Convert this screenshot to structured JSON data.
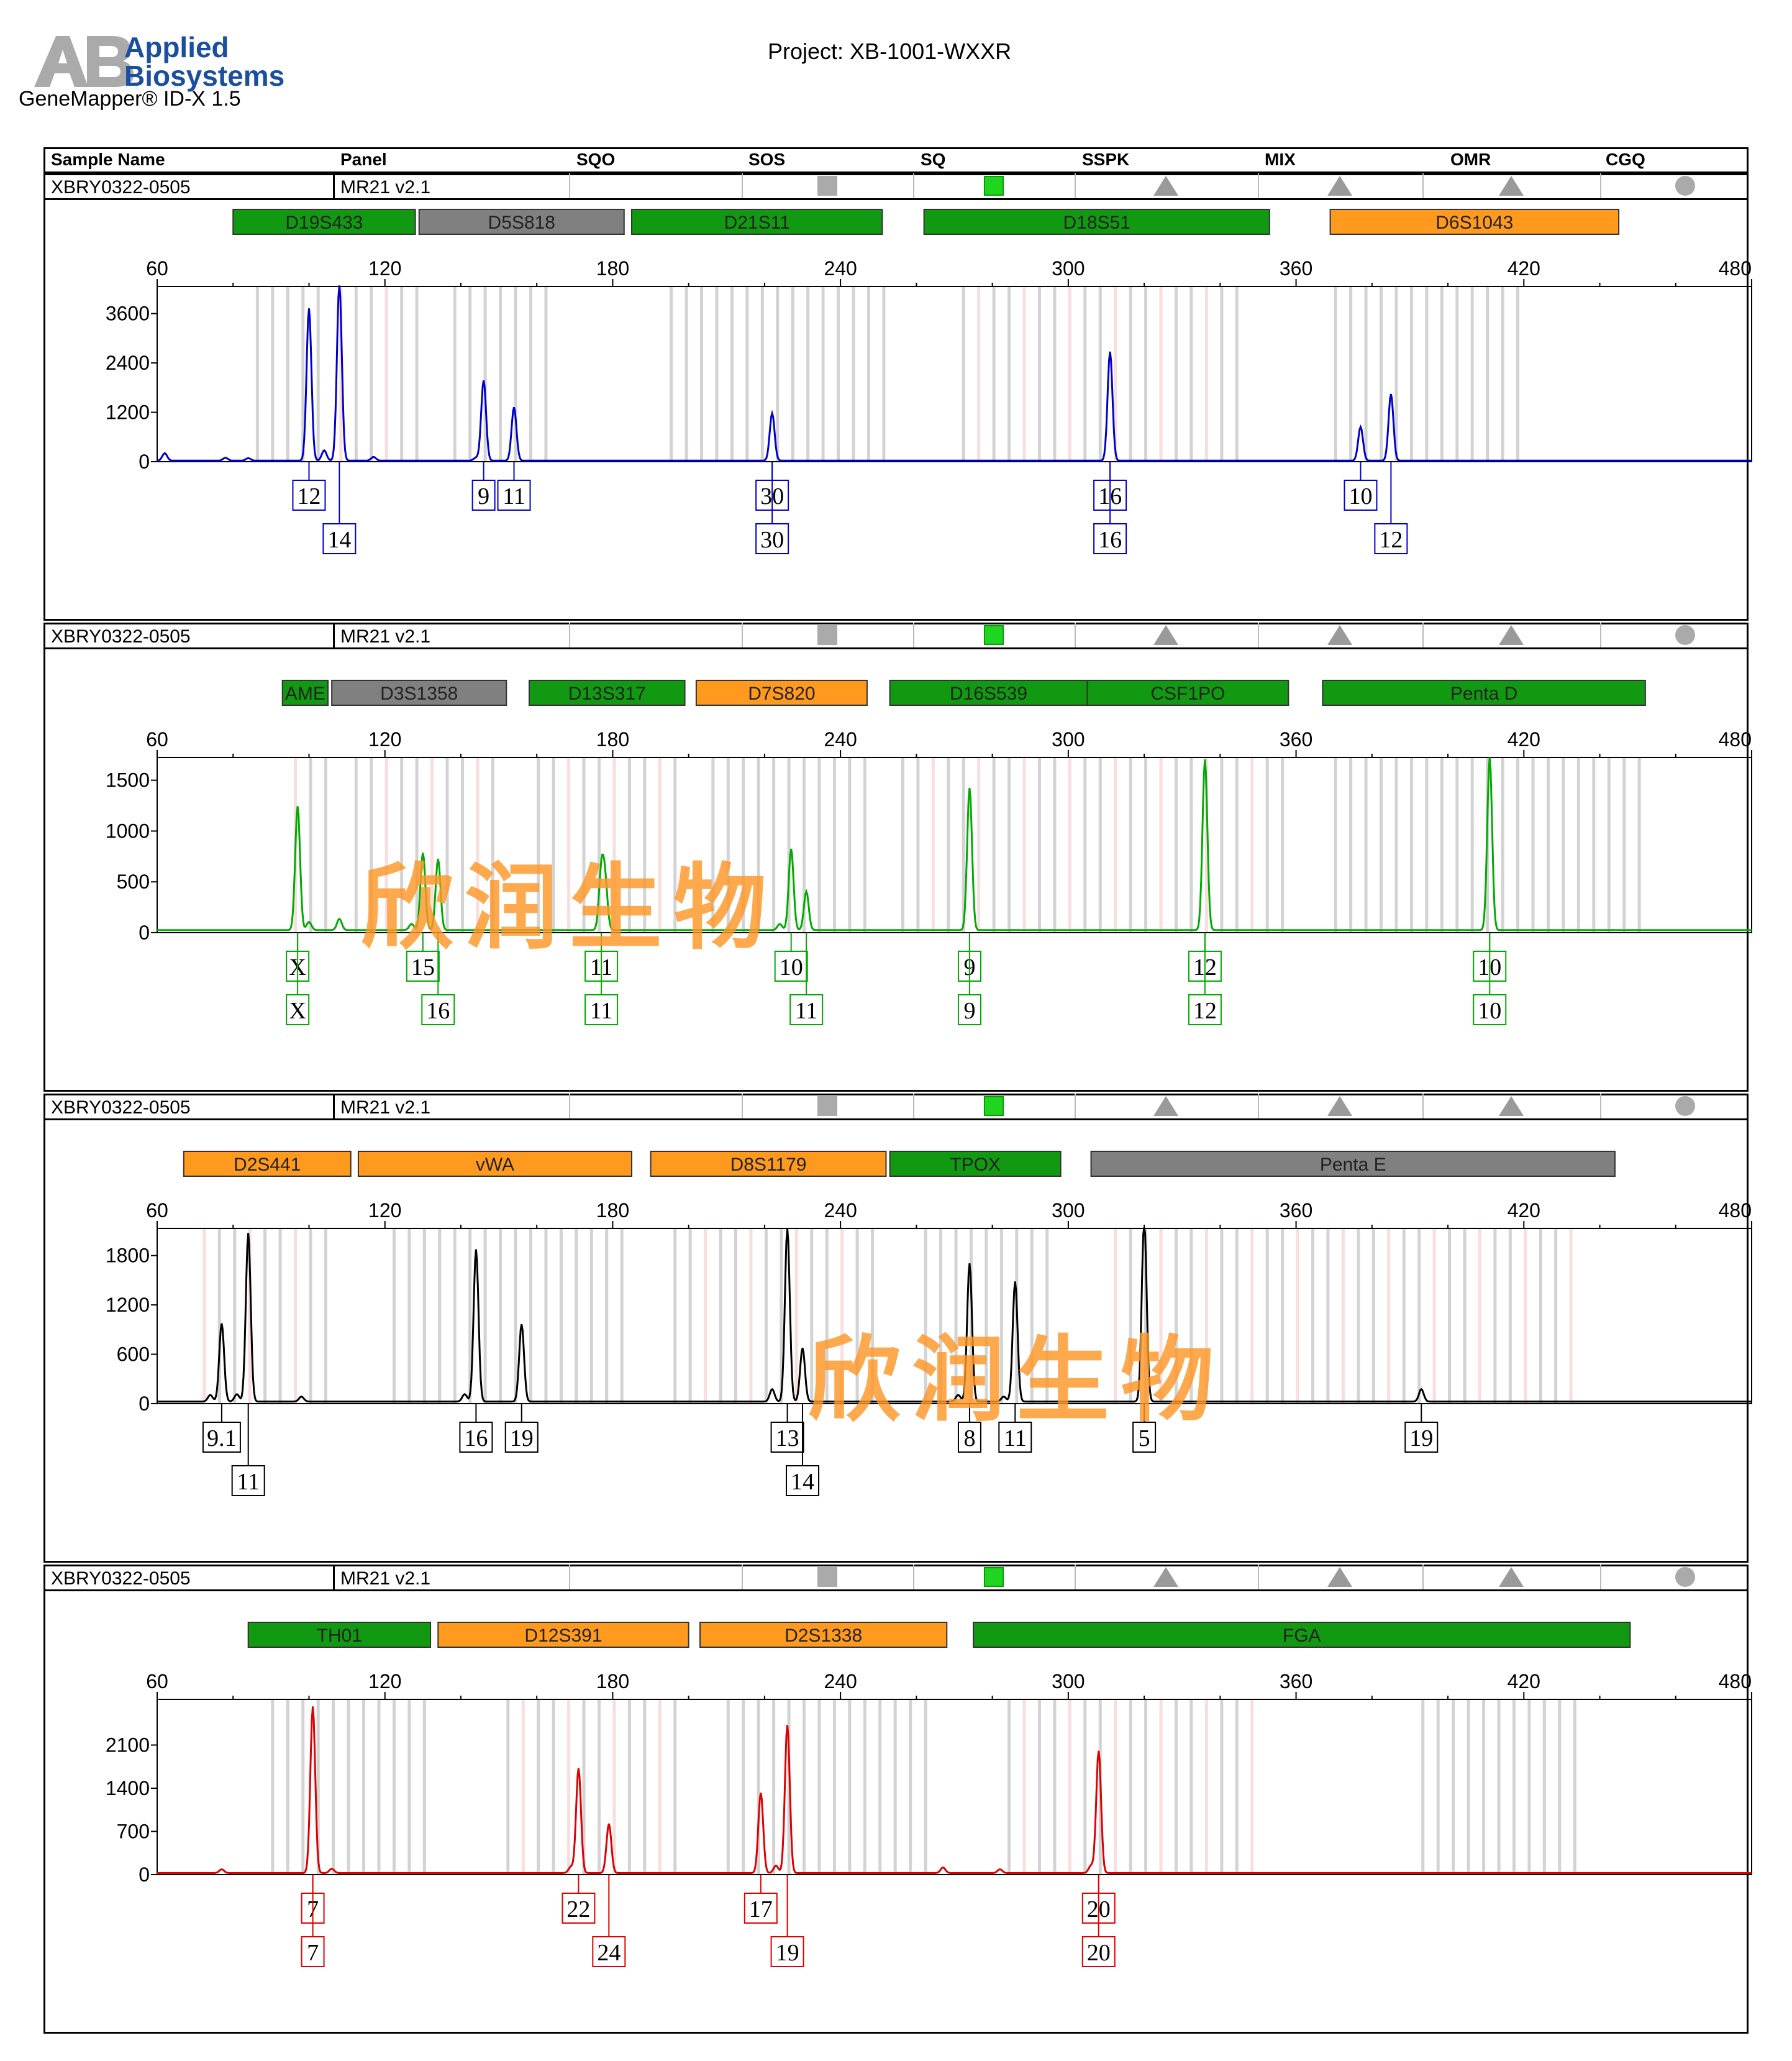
{
  "header": {
    "logo_line1": "Applied",
    "logo_line2": "Biosystems",
    "product": "GeneMapper® ID-X  1.5",
    "project": "Project: XB-1001-WXXR"
  },
  "columns": [
    "Sample Name",
    "Panel",
    "SQO",
    "SOS",
    "SQ",
    "SSPK",
    "MIX",
    "OMR",
    "CGQ"
  ],
  "sample_row": {
    "sample_name": "XBRY0322-0505",
    "panel": "MR21  v2.1",
    "flags": [
      {
        "key": "SOS",
        "shape": "square",
        "color": "#aaaaaa"
      },
      {
        "key": "SQ",
        "shape": "square",
        "color": "#1fd51f"
      },
      {
        "key": "SSPK",
        "shape": "triangle",
        "color": "#9a9a9a"
      },
      {
        "key": "MIX",
        "shape": "triangle",
        "color": "#9a9a9a"
      },
      {
        "key": "OMR",
        "shape": "triangle",
        "color": "#9a9a9a"
      },
      {
        "key": "CGQ",
        "shape": "circle",
        "color": "#aaaaaa"
      }
    ]
  },
  "watermark": "欣润生物",
  "marker_colors": {
    "green": "#119911",
    "gray": "#808080",
    "orange": "#ff9a1e"
  },
  "chart_data": [
    {
      "type": "line",
      "dye_color": "#0000cc",
      "x_range": [
        60,
        480
      ],
      "x_ticks": [
        60,
        120,
        180,
        240,
        300,
        360,
        420,
        480
      ],
      "y_range": [
        0,
        4200
      ],
      "y_ticks": [
        0,
        1200,
        2400,
        3600
      ],
      "markers": [
        {
          "name": "D19S433",
          "start": 80,
          "end": 128,
          "color": "green"
        },
        {
          "name": "D5S818",
          "start": 129,
          "end": 183,
          "color": "gray"
        },
        {
          "name": "D21S11",
          "start": 185,
          "end": 251,
          "color": "green"
        },
        {
          "name": "D18S51",
          "start": 262,
          "end": 353,
          "color": "green"
        },
        {
          "name": "D6S1043",
          "start": 369,
          "end": 445,
          "color": "orange"
        }
      ],
      "peaks": [
        {
          "x": 100,
          "y": 3700
        },
        {
          "x": 108,
          "y": 4300
        },
        {
          "x": 146,
          "y": 1950
        },
        {
          "x": 154,
          "y": 1300
        },
        {
          "x": 222,
          "y": 1150
        },
        {
          "x": 311,
          "y": 2650
        },
        {
          "x": 377,
          "y": 820
        },
        {
          "x": 385,
          "y": 1620
        }
      ],
      "minor_peaks": [
        {
          "x": 62,
          "y": 180
        },
        {
          "x": 78,
          "y": 70
        },
        {
          "x": 84,
          "y": 60
        },
        {
          "x": 104,
          "y": 250
        },
        {
          "x": 117,
          "y": 90
        },
        {
          "x": 144,
          "y": 70
        }
      ],
      "alleles": [
        {
          "label": "12",
          "x": 100,
          "row": 1
        },
        {
          "label": "14",
          "x": 108,
          "row": 2
        },
        {
          "label": "9",
          "x": 146,
          "row": 1
        },
        {
          "label": "11",
          "x": 154,
          "row": 1
        },
        {
          "label": "30",
          "x": 222,
          "row": 1
        },
        {
          "label": "30",
          "x": 222,
          "row": 2
        },
        {
          "label": "16",
          "x": 311,
          "row": 1
        },
        {
          "label": "16",
          "x": 311,
          "row": 2
        },
        {
          "label": "10",
          "x": 377,
          "row": 1
        },
        {
          "label": "12",
          "x": 385,
          "row": 2
        }
      ],
      "bin_ranges": [
        [
          86,
          104
        ],
        [
          108,
          128
        ],
        [
          138,
          162
        ],
        [
          195,
          252
        ],
        [
          272,
          345
        ],
        [
          370,
          418
        ]
      ]
    },
    {
      "type": "line",
      "dye_color": "#00aa00",
      "x_range": [
        60,
        480
      ],
      "x_ticks": [
        60,
        120,
        180,
        240,
        300,
        360,
        420,
        480
      ],
      "y_range": [
        0,
        1700
      ],
      "y_ticks": [
        0,
        500,
        1000,
        1500
      ],
      "markers": [
        {
          "name": "AME",
          "start": 93,
          "end": 105,
          "color": "green"
        },
        {
          "name": "D3S1358",
          "start": 106,
          "end": 152,
          "color": "gray"
        },
        {
          "name": "D13S317",
          "start": 158,
          "end": 199,
          "color": "green"
        },
        {
          "name": "D7S820",
          "start": 202,
          "end": 247,
          "color": "orange"
        },
        {
          "name": "D16S539",
          "start": 253,
          "end": 305,
          "color": "green"
        },
        {
          "name": "CSF1PO",
          "start": 305,
          "end": 358,
          "color": "green"
        },
        {
          "name": "Penta D",
          "start": 367,
          "end": 452,
          "color": "green"
        }
      ],
      "peaks": [
        {
          "x": 97,
          "y": 1220
        },
        {
          "x": 130,
          "y": 760
        },
        {
          "x": 134,
          "y": 700
        },
        {
          "x": 177,
          "y": 560
        },
        {
          "x": 178,
          "y": 450
        },
        {
          "x": 227,
          "y": 800
        },
        {
          "x": 231,
          "y": 380
        },
        {
          "x": 274,
          "y": 1400
        },
        {
          "x": 336,
          "y": 1680
        },
        {
          "x": 411,
          "y": 1700
        }
      ],
      "minor_peaks": [
        {
          "x": 100,
          "y": 80
        },
        {
          "x": 108,
          "y": 110
        },
        {
          "x": 127,
          "y": 60
        },
        {
          "x": 224,
          "y": 60
        }
      ],
      "alleles": [
        {
          "label": "X",
          "x": 97,
          "row": 1
        },
        {
          "label": "X",
          "x": 97,
          "row": 2
        },
        {
          "label": "15",
          "x": 130,
          "row": 1
        },
        {
          "label": "16",
          "x": 134,
          "row": 2
        },
        {
          "label": "11",
          "x": 177,
          "row": 1
        },
        {
          "label": "11",
          "x": 177,
          "row": 2
        },
        {
          "label": "10",
          "x": 227,
          "row": 1
        },
        {
          "label": "11",
          "x": 231,
          "row": 2
        },
        {
          "label": "9",
          "x": 274,
          "row": 1
        },
        {
          "label": "9",
          "x": 274,
          "row": 2
        },
        {
          "label": "12",
          "x": 336,
          "row": 1
        },
        {
          "label": "12",
          "x": 336,
          "row": 2
        },
        {
          "label": "10",
          "x": 411,
          "row": 1
        },
        {
          "label": "10",
          "x": 411,
          "row": 2
        }
      ],
      "bin_ranges": [
        [
          96,
          104
        ],
        [
          112,
          150
        ],
        [
          160,
          198
        ],
        [
          206,
          246
        ],
        [
          256,
          304
        ],
        [
          308,
          358
        ],
        [
          370,
          450
        ]
      ]
    },
    {
      "type": "line",
      "dye_color": "#000000",
      "x_range": [
        60,
        480
      ],
      "x_ticks": [
        60,
        120,
        180,
        240,
        300,
        360,
        420,
        480
      ],
      "y_range": [
        0,
        2100
      ],
      "y_ticks": [
        0,
        600,
        1200,
        1800
      ],
      "markers": [
        {
          "name": "D2S441",
          "start": 67,
          "end": 111,
          "color": "orange"
        },
        {
          "name": "vWA",
          "start": 113,
          "end": 185,
          "color": "orange"
        },
        {
          "name": "D8S1179",
          "start": 190,
          "end": 252,
          "color": "orange"
        },
        {
          "name": "TPOX",
          "start": 253,
          "end": 298,
          "color": "green"
        },
        {
          "name": "Penta E",
          "start": 306,
          "end": 444,
          "color": "gray"
        }
      ],
      "peaks": [
        {
          "x": 77,
          "y": 950
        },
        {
          "x": 84,
          "y": 2050
        },
        {
          "x": 144,
          "y": 1850
        },
        {
          "x": 156,
          "y": 940
        },
        {
          "x": 226,
          "y": 2100
        },
        {
          "x": 230,
          "y": 650
        },
        {
          "x": 274,
          "y": 1680
        },
        {
          "x": 286,
          "y": 1460
        },
        {
          "x": 320,
          "y": 2200
        },
        {
          "x": 393,
          "y": 150
        }
      ],
      "minor_peaks": [
        {
          "x": 74,
          "y": 80
        },
        {
          "x": 81,
          "y": 90
        },
        {
          "x": 98,
          "y": 60
        },
        {
          "x": 141,
          "y": 90
        },
        {
          "x": 222,
          "y": 150
        },
        {
          "x": 271,
          "y": 80
        },
        {
          "x": 283,
          "y": 60
        }
      ],
      "alleles": [
        {
          "label": "9.1",
          "x": 77,
          "row": 1
        },
        {
          "label": "11",
          "x": 84,
          "row": 2
        },
        {
          "label": "16",
          "x": 144,
          "row": 1
        },
        {
          "label": "19",
          "x": 156,
          "row": 1
        },
        {
          "label": "13",
          "x": 226,
          "row": 1
        },
        {
          "label": "14",
          "x": 230,
          "row": 2
        },
        {
          "label": "8",
          "x": 274,
          "row": 1
        },
        {
          "label": "11",
          "x": 286,
          "row": 1
        },
        {
          "label": "5",
          "x": 320,
          "row": 1
        },
        {
          "label": "19",
          "x": 393,
          "row": 1
        }
      ],
      "bin_ranges": [
        [
          72,
          106
        ],
        [
          122,
          182
        ],
        [
          196,
          250
        ],
        [
          262,
          296
        ],
        [
          312,
          435
        ]
      ]
    },
    {
      "type": "line",
      "dye_color": "#dd0000",
      "x_range": [
        60,
        480
      ],
      "x_ticks": [
        60,
        120,
        180,
        240,
        300,
        360,
        420,
        480
      ],
      "y_range": [
        0,
        2800
      ],
      "y_ticks": [
        0,
        700,
        1400,
        2100
      ],
      "markers": [
        {
          "name": "TH01",
          "start": 84,
          "end": 132,
          "color": "green"
        },
        {
          "name": "D12S391",
          "start": 134,
          "end": 200,
          "color": "orange"
        },
        {
          "name": "D2S1338",
          "start": 203,
          "end": 268,
          "color": "orange"
        },
        {
          "name": "FGA",
          "start": 275,
          "end": 448,
          "color": "green"
        }
      ],
      "peaks": [
        {
          "x": 101,
          "y": 2700
        },
        {
          "x": 171,
          "y": 1700
        },
        {
          "x": 179,
          "y": 800
        },
        {
          "x": 219,
          "y": 1300
        },
        {
          "x": 226,
          "y": 2400
        },
        {
          "x": 308,
          "y": 1980
        }
      ],
      "minor_peaks": [
        {
          "x": 77,
          "y": 60
        },
        {
          "x": 106,
          "y": 70
        },
        {
          "x": 169,
          "y": 100
        },
        {
          "x": 223,
          "y": 120
        },
        {
          "x": 267,
          "y": 90
        },
        {
          "x": 282,
          "y": 60
        },
        {
          "x": 306,
          "y": 120
        }
      ],
      "alleles": [
        {
          "label": "7",
          "x": 101,
          "row": 1
        },
        {
          "label": "7",
          "x": 101,
          "row": 2
        },
        {
          "label": "22",
          "x": 171,
          "row": 1
        },
        {
          "label": "24",
          "x": 179,
          "row": 2
        },
        {
          "label": "17",
          "x": 219,
          "row": 1
        },
        {
          "label": "19",
          "x": 226,
          "row": 2
        },
        {
          "label": "20",
          "x": 308,
          "row": 1
        },
        {
          "label": "20",
          "x": 308,
          "row": 2
        }
      ],
      "bin_ranges": [
        [
          90,
          132
        ],
        [
          152,
          199
        ],
        [
          210,
          262
        ],
        [
          284,
          350
        ],
        [
          393,
          436
        ]
      ]
    }
  ]
}
